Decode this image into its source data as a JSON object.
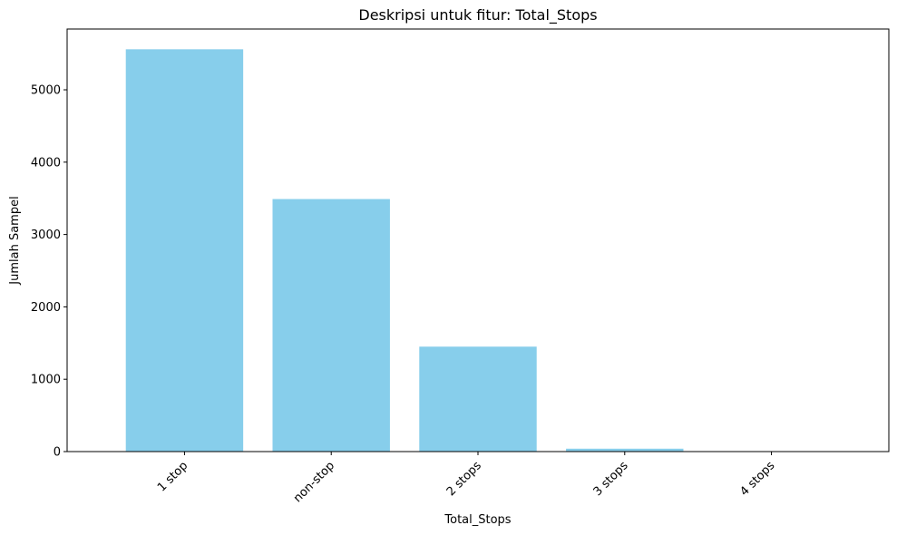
{
  "chart_data": {
    "type": "bar",
    "title": "Deskripsi untuk fitur: Total_Stops",
    "xlabel": "Total_Stops",
    "ylabel": "Jumlah Sampel",
    "categories": [
      "1 stop",
      "non-stop",
      "2 stops",
      "3 stops",
      "4 stops"
    ],
    "values": [
      5560,
      3490,
      1450,
      40,
      1
    ],
    "ylim": [
      0,
      5840
    ],
    "yticks": [
      0,
      1000,
      2000,
      3000,
      4000,
      5000
    ],
    "grid": false,
    "bar_color": "#87ceeb",
    "xtick_rotation": 45
  }
}
